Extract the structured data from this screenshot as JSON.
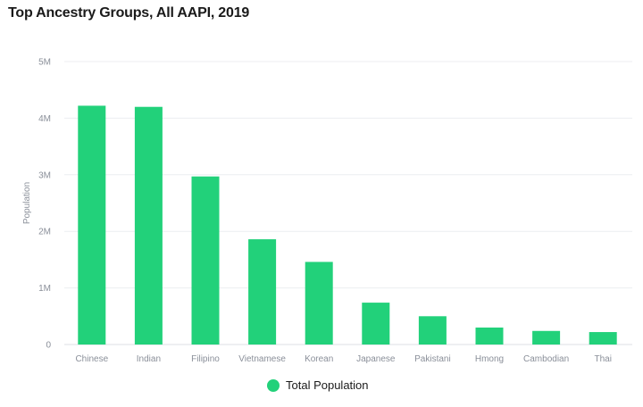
{
  "chart_data": {
    "type": "bar",
    "title": "Top Ancestry Groups, All AAPI, 2019",
    "xlabel": "",
    "ylabel": "Population",
    "ylim": [
      0,
      5000000
    ],
    "y_ticks": [
      0,
      1000000,
      2000000,
      3000000,
      4000000,
      5000000
    ],
    "y_tick_labels": [
      "0",
      "1M",
      "2M",
      "3M",
      "4M",
      "5M"
    ],
    "categories": [
      "Chinese",
      "Indian",
      "Filipino",
      "Vietnamese",
      "Korean",
      "Japanese",
      "Pakistani",
      "Hmong",
      "Cambodian",
      "Thai"
    ],
    "series": [
      {
        "name": "Total Population",
        "color": "#22d17a",
        "values": [
          4220000,
          4200000,
          2970000,
          1860000,
          1460000,
          740000,
          500000,
          300000,
          240000,
          220000
        ]
      }
    ],
    "grid": true,
    "legend_position": "bottom-center"
  }
}
